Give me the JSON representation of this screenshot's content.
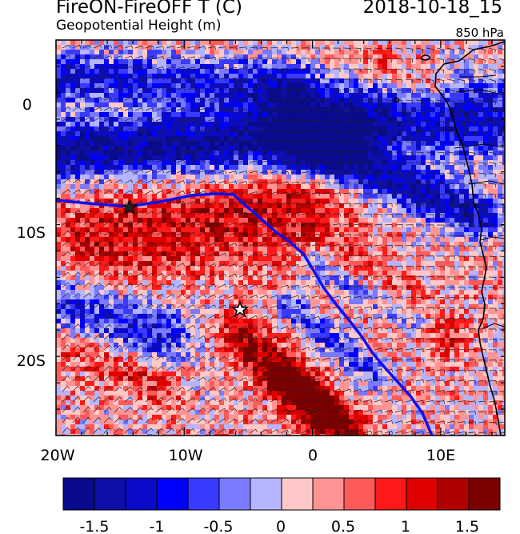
{
  "title": {
    "main": "FireON-FireOFF T (C)",
    "date": "2018-10-18_15",
    "subtitle": "Geopotential Height (m)",
    "level": "850 hPa"
  },
  "map": {
    "lon_range": [
      -20,
      15
    ],
    "lat_range": [
      -25,
      5
    ],
    "x_tick_labels": [
      "20W",
      "10W",
      "0",
      "10E"
    ],
    "y_tick_labels": [
      "0",
      "10S",
      "20S"
    ],
    "contour_color": "#1010ee",
    "markers": [
      "star-filled",
      "star-open"
    ]
  },
  "colorbar": {
    "labels": [
      "-1.5",
      "-1",
      "-0.5",
      "0",
      "0.5",
      "1",
      "1.5"
    ],
    "colors": [
      "#0a0a8c",
      "#0f0fa8",
      "#0a0ac8",
      "#0000ff",
      "#3a3aff",
      "#7a7aff",
      "#b4b4ff",
      "#ffc8c8",
      "#ff9494",
      "#ff5a5a",
      "#ff1a1a",
      "#e00000",
      "#b00000",
      "#7d0000"
    ]
  }
}
